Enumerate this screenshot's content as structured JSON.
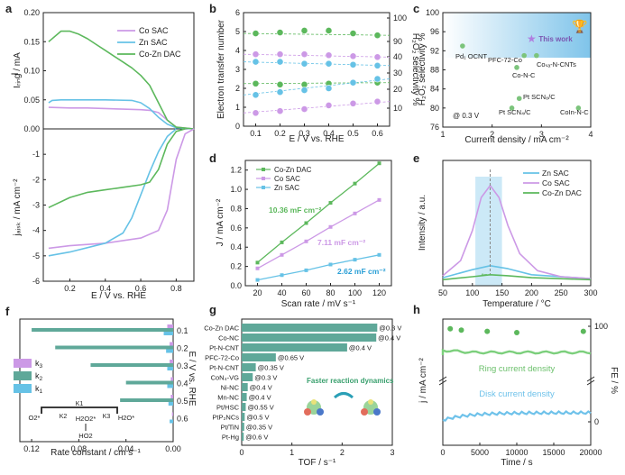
{
  "panels": {
    "a": {
      "label": "a",
      "ylabel_top": "I_ring / mA",
      "ylabel_bottom": "j_disk / mA cm^-2",
      "xlabel": "E / V vs. RHE",
      "legend": [
        "Co SAC",
        "Zn SAC",
        "Co-Zn DAC"
      ],
      "colors": [
        "#cc99e6",
        "#66c2e6",
        "#5cb85c"
      ]
    },
    "b": {
      "label": "b",
      "ylabel_left": "Electron transfer number",
      "ylabel_right": "H2O2 selectivity %",
      "xlabel": "E / V vs. RHE"
    },
    "c": {
      "label": "c",
      "ylabel": "H2O2 selectivity %",
      "xlabel": "Current density / mA cm^-2",
      "note": "@ 0.3 V",
      "this_work": "This work"
    },
    "d": {
      "label": "d",
      "ylabel": "J / mA cm^-2",
      "xlabel": "Scan rate / mV s^-1",
      "annotations": [
        "10.36 mF cm^-2",
        "7.11 mF cm^-2",
        "2.62 mF cm^-2"
      ]
    },
    "e": {
      "label": "e",
      "ylabel": "Intensity / a.u.",
      "xlabel": "Temperature / °C"
    },
    "f": {
      "label": "f",
      "xlabel": "Rate constant / cm s^-1",
      "ylabel_right": "E / V vs. RHE",
      "legend": [
        "k3",
        "k2",
        "k1"
      ],
      "scheme": {
        "k1": "K1",
        "k2": "K2",
        "k3": "K3",
        "o2": "O2*",
        "h2o2s": "H2O2*",
        "h2o": "H2O*",
        "ho2": "HO2"
      }
    },
    "g": {
      "label": "g",
      "xlabel": "TOF / s^-1",
      "inset_text": "Faster reaction dynamics"
    },
    "h": {
      "label": "h",
      "ylabel_left": "j / mA cm^-2",
      "ylabel_right": "FE / %",
      "xlabel": "Time / s",
      "ring_text": "Ring current density",
      "disk_text": "Disk current density"
    }
  },
  "chart_data": [
    {
      "panel": "a",
      "type": "line",
      "xlabel": "E / V vs. RHE",
      "x_ticks": [
        0.2,
        0.4,
        0.6,
        0.8
      ],
      "top": {
        "ylabel": "I_ring / mA",
        "ylim": [
          0,
          0.2
        ],
        "y_ticks": [
          0.0,
          0.05,
          0.1,
          0.15,
          0.2
        ],
        "series": [
          {
            "name": "Co SAC",
            "x": [
              0.08,
              0.2,
              0.3,
              0.4,
              0.5,
              0.6,
              0.65,
              0.7,
              0.75,
              0.8,
              0.9
            ],
            "y": [
              0.037,
              0.036,
              0.036,
              0.035,
              0.034,
              0.033,
              0.032,
              0.028,
              0.015,
              0.003,
              0.0
            ]
          },
          {
            "name": "Zn SAC",
            "x": [
              0.08,
              0.1,
              0.15,
              0.2,
              0.4,
              0.55,
              0.6,
              0.65,
              0.7,
              0.75,
              0.8,
              0.9
            ],
            "y": [
              0.045,
              0.049,
              0.05,
              0.05,
              0.05,
              0.049,
              0.045,
              0.035,
              0.02,
              0.008,
              0.002,
              0.0
            ]
          },
          {
            "name": "Co-Zn DAC",
            "x": [
              0.08,
              0.15,
              0.2,
              0.25,
              0.3,
              0.35,
              0.4,
              0.45,
              0.5,
              0.55,
              0.6,
              0.65,
              0.7,
              0.75,
              0.8,
              0.9
            ],
            "y": [
              0.15,
              0.168,
              0.168,
              0.163,
              0.155,
              0.145,
              0.135,
              0.125,
              0.115,
              0.105,
              0.092,
              0.075,
              0.045,
              0.015,
              0.003,
              0.0
            ]
          }
        ]
      },
      "bottom": {
        "ylabel": "j_disk / mA cm^-2",
        "ylim": [
          -6,
          0
        ],
        "y_ticks": [
          0,
          -1,
          -2,
          -3,
          -4,
          -5,
          -6
        ],
        "series": [
          {
            "name": "Co SAC",
            "x": [
              0.08,
              0.2,
              0.4,
              0.6,
              0.7,
              0.75,
              0.8,
              0.85,
              0.9
            ],
            "y": [
              -4.7,
              -4.6,
              -4.5,
              -4.3,
              -4.0,
              -3.2,
              -1.2,
              -0.2,
              0.0
            ]
          },
          {
            "name": "Zn SAC",
            "x": [
              0.08,
              0.2,
              0.4,
              0.5,
              0.55,
              0.6,
              0.65,
              0.7,
              0.75,
              0.8
            ],
            "y": [
              -5.0,
              -4.85,
              -4.5,
              -4.1,
              -3.5,
              -2.6,
              -1.7,
              -0.9,
              -0.3,
              0.0
            ]
          },
          {
            "name": "Co-Zn DAC",
            "x": [
              0.08,
              0.2,
              0.3,
              0.4,
              0.5,
              0.6,
              0.65,
              0.7,
              0.75,
              0.8,
              0.85
            ],
            "y": [
              -3.1,
              -2.7,
              -2.5,
              -2.4,
              -2.3,
              -2.2,
              -2.1,
              -1.6,
              -0.6,
              -0.1,
              0.0
            ]
          }
        ]
      }
    },
    {
      "panel": "b",
      "type": "scatter",
      "x": [
        0.1,
        0.2,
        0.3,
        0.4,
        0.5,
        0.6
      ],
      "x_ticks": [
        0.1,
        0.2,
        0.3,
        0.4,
        0.5,
        0.6
      ],
      "ylim_left": [
        0,
        6
      ],
      "y_ticks_left": [
        0,
        1,
        2,
        3,
        4,
        5,
        6
      ],
      "y_ticks_right": [
        10,
        20,
        30,
        40,
        90,
        100
      ],
      "series": [
        {
          "name": "Co-Zn DAC",
          "n": [
            4.9,
            4.95,
            5.05,
            5.05,
            4.9,
            4.8
          ],
          "n2": [
            2.25,
            2.2,
            2.2,
            2.25,
            2.3,
            2.3
          ]
        },
        {
          "name": "Co SAC",
          "n": [
            3.8,
            3.8,
            3.8,
            3.75,
            3.7,
            3.65
          ],
          "n2": [
            0.7,
            0.8,
            0.9,
            1.1,
            1.2,
            1.3
          ]
        },
        {
          "name": "Zn SAC",
          "n": [
            3.4,
            3.4,
            3.3,
            3.3,
            3.25,
            3.2
          ],
          "n2": [
            1.65,
            1.8,
            1.9,
            2.0,
            2.3,
            2.5
          ]
        }
      ]
    },
    {
      "panel": "c",
      "type": "scatter",
      "xlim": [
        1,
        4
      ],
      "ylim": [
        76,
        100
      ],
      "x_ticks": [
        1,
        2,
        3,
        4
      ],
      "y_ticks": [
        76,
        80,
        84,
        88,
        92,
        96,
        100
      ],
      "points": [
        {
          "label": "Pd1 OCNT",
          "x": 1.4,
          "y": 93
        },
        {
          "label": "PFC-72-Co",
          "x": 2.65,
          "y": 91
        },
        {
          "label": "CoSA-N-CNTs",
          "x": 2.9,
          "y": 91
        },
        {
          "label": "Co-N-C",
          "x": 2.5,
          "y": 88.5
        },
        {
          "label": "Pt SCN8/C",
          "x": 2.55,
          "y": 82
        },
        {
          "label": "Pt SCN4/C",
          "x": 2.4,
          "y": 80
        },
        {
          "label": "CoIn-N-C",
          "x": 3.75,
          "y": 80
        },
        {
          "label": "This work",
          "x": 2.8,
          "y": 94.5
        }
      ]
    },
    {
      "panel": "d",
      "type": "line",
      "x": [
        20,
        40,
        60,
        80,
        100,
        120
      ],
      "x_ticks": [
        20,
        40,
        60,
        80,
        100,
        120
      ],
      "ylim": [
        0,
        1.3
      ],
      "y_ticks": [
        0,
        0.2,
        0.4,
        0.6,
        0.8,
        1.0,
        1.2
      ],
      "series": [
        {
          "name": "Co-Zn DAC",
          "values": [
            0.24,
            0.45,
            0.65,
            0.86,
            1.06,
            1.27
          ]
        },
        {
          "name": "Co SAC",
          "values": [
            0.18,
            0.32,
            0.46,
            0.61,
            0.75,
            0.89
          ]
        },
        {
          "name": "Zn SAC",
          "values": [
            0.06,
            0.11,
            0.16,
            0.22,
            0.27,
            0.32
          ]
        }
      ]
    },
    {
      "panel": "e",
      "type": "line",
      "xlim": [
        50,
        300
      ],
      "x_ticks": [
        50,
        100,
        150,
        200,
        250,
        300
      ],
      "series": [
        {
          "name": "Zn SAC",
          "x": [
            50,
            100,
            130,
            160,
            200,
            300
          ],
          "y": [
            0.08,
            0.16,
            0.2,
            0.17,
            0.11,
            0.07
          ]
        },
        {
          "name": "Co SAC",
          "x": [
            50,
            80,
            100,
            115,
            130,
            145,
            160,
            180,
            210,
            250,
            300
          ],
          "y": [
            0.1,
            0.25,
            0.55,
            0.88,
            1.0,
            0.88,
            0.6,
            0.32,
            0.15,
            0.09,
            0.07
          ]
        },
        {
          "name": "Co-Zn DAC",
          "x": [
            50,
            100,
            130,
            160,
            200,
            300
          ],
          "y": [
            0.06,
            0.09,
            0.11,
            0.1,
            0.08,
            0.06
          ]
        }
      ]
    },
    {
      "panel": "f",
      "type": "bar",
      "categories": [
        "0.1",
        "0.2",
        "0.3",
        "0.4",
        "0.5",
        "0.6"
      ],
      "xlim": [
        0.12,
        0
      ],
      "x_ticks": [
        0.12,
        0.08,
        0.04,
        0.0
      ],
      "series": [
        {
          "name": "k3",
          "values": [
            0.005,
            0.003,
            0.003,
            0.002,
            0.002,
            0.001
          ]
        },
        {
          "name": "k2",
          "values": [
            0.12,
            0.1,
            0.07,
            0.04,
            0.045,
            0.0
          ]
        },
        {
          "name": "k1",
          "values": [
            0.008,
            0.006,
            0.005,
            0.005,
            0.004,
            0.003
          ]
        }
      ]
    },
    {
      "panel": "g",
      "type": "bar",
      "categories": [
        "Co-Zn DAC",
        "Co-NC",
        "Pt-N-CNT",
        "PFC-72-Co",
        "Pt-N-CNT",
        "CoN4-VG",
        "Ni-NC",
        "Mn-NC",
        "Pt/HSC",
        "PtP2NCs",
        "Pt/TiN",
        "Pt-Hg"
      ],
      "values": [
        2.7,
        2.68,
        2.1,
        0.68,
        0.28,
        0.22,
        0.12,
        0.1,
        0.08,
        0.06,
        0.05,
        0.04
      ],
      "conditions": [
        "@0.3 V",
        "@0.4 V",
        "@0.4 V",
        "@0.65 V",
        "@0.35 V",
        "@0.3 V",
        "@0.4 V",
        "@0.4 V",
        "@0.55 V",
        "@0.5 V",
        "@0.35 V",
        "@0.6 V"
      ],
      "xlim": [
        0,
        3
      ],
      "x_ticks": [
        0,
        1,
        2,
        3
      ]
    },
    {
      "panel": "h",
      "type": "line",
      "xlim": [
        0,
        20000
      ],
      "x_ticks": [
        0,
        5000,
        10000,
        15000,
        20000
      ],
      "y_ticks_right": [
        0,
        100
      ],
      "fe_points": {
        "x": [
          1000,
          2500,
          6000,
          10000,
          19000
        ],
        "y": [
          98,
          97,
          96,
          95,
          96
        ]
      }
    }
  ]
}
